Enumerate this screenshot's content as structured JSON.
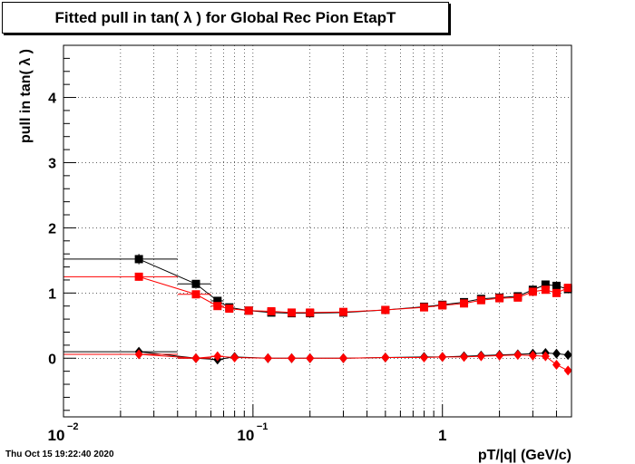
{
  "timestamp": "Thu Oct 15 19:22:40 2020",
  "chart_data": {
    "type": "scatter",
    "title": "Fitted pull in tan( λ ) for Global Rec Pion EtapT",
    "xlabel": "pT/|q| (GeV/c)",
    "ylabel": "pull in tan( λ )",
    "xscale": "log",
    "xlim": [
      0.01,
      4.8
    ],
    "ylim": [
      -0.9,
      4.8
    ],
    "grid": true,
    "x_tick_labels": [
      {
        "value": 0.01,
        "base": "10",
        "exp": "−2"
      },
      {
        "value": 0.1,
        "base": "10",
        "exp": "−1"
      },
      {
        "value": 1,
        "base": "1",
        "exp": ""
      }
    ],
    "y_ticks": [
      0,
      1,
      2,
      3,
      4
    ],
    "colors": {
      "black": "#000000",
      "red": "#ff0000"
    },
    "series": [
      {
        "color": "#000000",
        "marker": "square",
        "x": [
          0.025,
          0.05,
          0.065,
          0.075,
          0.095,
          0.125,
          0.16,
          0.2,
          0.3,
          0.5,
          0.8,
          1.0,
          1.3,
          1.6,
          2.0,
          2.5,
          3.0,
          3.5,
          4.0,
          4.6
        ],
        "y": [
          1.52,
          1.14,
          0.88,
          0.78,
          0.73,
          0.7,
          0.69,
          0.69,
          0.7,
          0.74,
          0.79,
          0.82,
          0.86,
          0.91,
          0.93,
          0.95,
          1.05,
          1.13,
          1.11,
          1.06
        ],
        "xerr": [
          0.015,
          0.01,
          0.005,
          0,
          0,
          0,
          0,
          0,
          0,
          0,
          0,
          0,
          0,
          0,
          0,
          0,
          0,
          0,
          0,
          0
        ],
        "yerr": [
          0.08,
          0.04,
          0.02,
          0,
          0,
          0,
          0,
          0,
          0,
          0,
          0,
          0,
          0,
          0,
          0,
          0,
          0,
          0,
          0,
          0
        ]
      },
      {
        "color": "#ff0000",
        "marker": "square",
        "x": [
          0.025,
          0.05,
          0.065,
          0.075,
          0.095,
          0.125,
          0.16,
          0.2,
          0.3,
          0.5,
          0.8,
          1.0,
          1.3,
          1.6,
          2.0,
          2.5,
          3.0,
          3.5,
          4.0,
          4.6
        ],
        "y": [
          1.25,
          0.98,
          0.8,
          0.76,
          0.73,
          0.72,
          0.7,
          0.7,
          0.71,
          0.74,
          0.78,
          0.81,
          0.84,
          0.89,
          0.92,
          0.93,
          1.02,
          1.05,
          1.0,
          1.08
        ],
        "xerr": [
          0.015,
          0.01,
          0.005,
          0,
          0,
          0,
          0,
          0,
          0,
          0,
          0,
          0,
          0,
          0,
          0,
          0,
          0,
          0,
          0,
          0
        ],
        "yerr": [
          0.06,
          0.03,
          0.02,
          0,
          0,
          0,
          0,
          0,
          0,
          0,
          0,
          0,
          0,
          0,
          0,
          0,
          0,
          0,
          0,
          0
        ]
      },
      {
        "color": "#000000",
        "marker": "diamond",
        "x": [
          0.025,
          0.05,
          0.065,
          0.08,
          0.12,
          0.16,
          0.2,
          0.3,
          0.5,
          0.8,
          1.0,
          1.3,
          1.6,
          2.0,
          2.5,
          3.0,
          3.5,
          4.0,
          4.6
        ],
        "y": [
          0.1,
          0.0,
          -0.02,
          0.02,
          0.0,
          0.0,
          0.0,
          0.0,
          0.01,
          0.02,
          0.02,
          0.03,
          0.04,
          0.05,
          0.06,
          0.07,
          0.08,
          0.07,
          0.05
        ],
        "xerr": [
          0.015,
          0.01,
          0.005,
          0,
          0,
          0,
          0,
          0,
          0,
          0,
          0,
          0,
          0,
          0,
          0,
          0,
          0,
          0,
          0
        ],
        "yerr": [
          0.03,
          0.02,
          0.02,
          0,
          0,
          0,
          0,
          0,
          0,
          0,
          0,
          0,
          0,
          0,
          0,
          0,
          0,
          0,
          0
        ]
      },
      {
        "color": "#ff0000",
        "marker": "diamond",
        "x": [
          0.025,
          0.05,
          0.065,
          0.08,
          0.12,
          0.16,
          0.2,
          0.3,
          0.5,
          0.8,
          1.0,
          1.3,
          1.6,
          2.0,
          2.5,
          3.0,
          3.5,
          4.0,
          4.6
        ],
        "y": [
          0.06,
          0.0,
          0.03,
          0.01,
          0.0,
          0.0,
          0.0,
          0.0,
          0.01,
          0.01,
          0.02,
          0.02,
          0.03,
          0.04,
          0.05,
          0.04,
          0.03,
          -0.1,
          -0.19
        ],
        "xerr": [
          0.015,
          0.01,
          0.005,
          0,
          0,
          0,
          0,
          0,
          0,
          0,
          0,
          0,
          0,
          0,
          0,
          0,
          0,
          0,
          0
        ],
        "yerr": [
          0.03,
          0.02,
          0.02,
          0,
          0,
          0,
          0,
          0,
          0,
          0,
          0,
          0,
          0,
          0,
          0,
          0,
          0,
          0,
          0
        ]
      }
    ]
  }
}
